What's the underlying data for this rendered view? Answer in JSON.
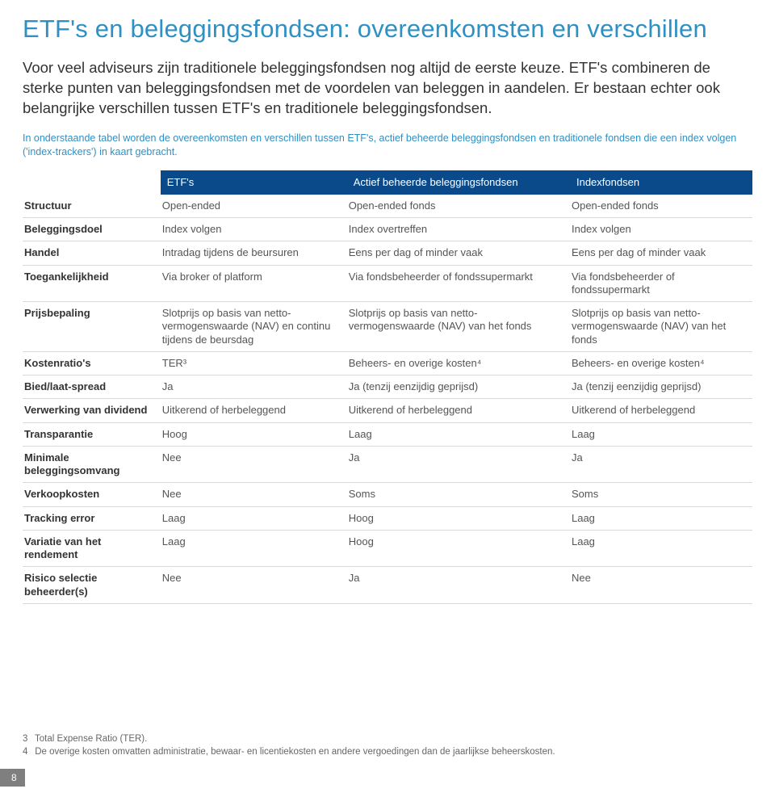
{
  "title": "ETF's en beleggingsfondsen: overeenkomsten en verschillen",
  "lead": "Voor veel adviseurs zijn traditionele beleggingsfondsen nog altijd de eerste keuze. ETF's combineren de sterke punten van beleggingsfondsen met de voordelen van beleggen in aandelen. Er bestaan echter ook belangrijke verschillen tussen ETF's en traditionele beleggingsfondsen.",
  "caption": "In onderstaande tabel worden de overeenkomsten en verschillen tussen ETF's, actief beheerde beleggingsfondsen en traditionele fondsen die een index volgen ('index-trackers') in kaart gebracht.",
  "table": {
    "header_color": "#0a4a8a",
    "header_text_color": "#ffffff",
    "columns": [
      "",
      "ETF's",
      "Actief beheerde beleggingsfondsen",
      "Indexfondsen"
    ],
    "rows": [
      {
        "label": "Structuur",
        "cells": [
          "Open-ended",
          "Open-ended fonds",
          "Open-ended fonds"
        ]
      },
      {
        "label": "Beleggingsdoel",
        "cells": [
          "Index volgen",
          "Index overtreffen",
          "Index volgen"
        ]
      },
      {
        "label": "Handel",
        "cells": [
          "Intradag tijdens de beursuren",
          "Eens per dag of minder vaak",
          "Eens per dag of minder vaak"
        ]
      },
      {
        "label": "Toegankelijkheid",
        "cells": [
          "Via broker of platform",
          "Via fondsbeheerder of fondssupermarkt",
          "Via fondsbeheerder of fondssupermarkt"
        ]
      },
      {
        "label": "Prijsbepaling",
        "cells": [
          "Slotprijs op basis van netto-vermogenswaarde (NAV) en continu tijdens de beursdag",
          "Slotprijs op basis van netto-vermogenswaarde (NAV) van het fonds",
          "Slotprijs op basis van netto-vermogenswaarde (NAV) van het fonds"
        ]
      },
      {
        "label": "Kostenratio's",
        "cells": [
          "TER³",
          "Beheers- en overige kosten⁴",
          "Beheers- en overige kosten⁴"
        ]
      },
      {
        "label": "Bied/laat-spread",
        "cells": [
          "Ja",
          "Ja (tenzij eenzijdig geprijsd)",
          "Ja (tenzij eenzijdig geprijsd)"
        ]
      },
      {
        "label": "Verwerking van dividend",
        "cells": [
          "Uitkerend of herbeleggend",
          "Uitkerend of herbeleggend",
          "Uitkerend of herbeleggend"
        ]
      },
      {
        "label": "Transparantie",
        "cells": [
          "Hoog",
          "Laag",
          "Laag"
        ]
      },
      {
        "label": "Minimale beleggingsomvang",
        "cells": [
          "Nee",
          "Ja",
          "Ja"
        ]
      },
      {
        "label": "Verkoopkosten",
        "cells": [
          "Nee",
          "Soms",
          "Soms"
        ]
      },
      {
        "label": "Tracking error",
        "cells": [
          "Laag",
          "Hoog",
          "Laag"
        ]
      },
      {
        "label": "Variatie van het rendement",
        "cells": [
          "Laag",
          "Hoog",
          "Laag"
        ]
      },
      {
        "label": "Risico selectie beheerder(s)",
        "cells": [
          "Nee",
          "Ja",
          "Nee"
        ]
      }
    ]
  },
  "footnotes": [
    {
      "num": "3",
      "text": "Total Expense Ratio (TER)."
    },
    {
      "num": "4",
      "text": "De overige kosten omvatten administratie, bewaar- en licentiekosten en andere vergoedingen dan de jaarlijkse beheerskosten."
    }
  ],
  "page_number": "8"
}
